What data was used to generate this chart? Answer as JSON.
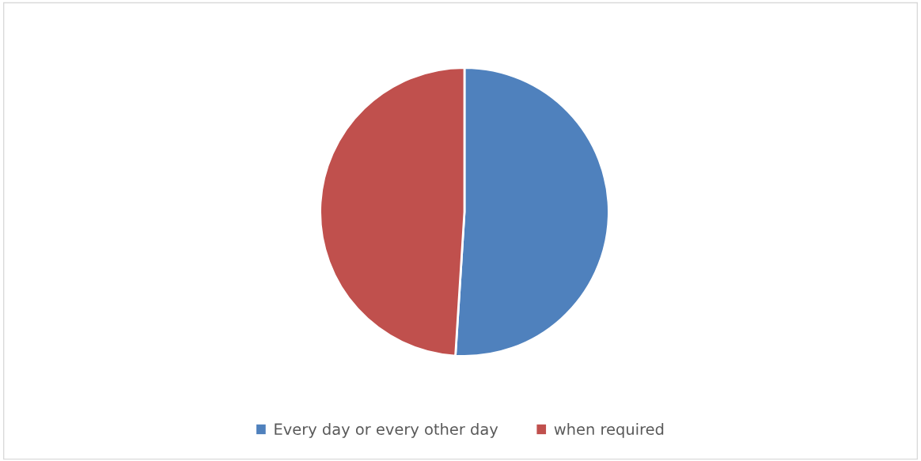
{
  "chart_data": {
    "type": "pie",
    "categories": [
      "Every day or every other day",
      "when required"
    ],
    "values": [
      51,
      49
    ],
    "colors": [
      "#4f81bd",
      "#c0504d"
    ],
    "legend": "bottom"
  }
}
